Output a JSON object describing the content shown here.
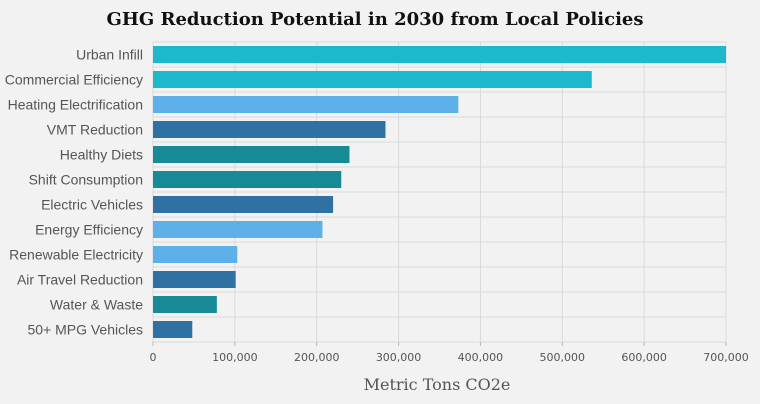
{
  "chart_data": {
    "type": "bar",
    "orientation": "horizontal",
    "title": "GHG Reduction Potential in 2030 from Local Policies",
    "xlabel": "Metric Tons CO2e",
    "ylabel": "",
    "xlim": [
      0,
      700000
    ],
    "xticks": [
      0,
      100000,
      200000,
      300000,
      400000,
      500000,
      600000,
      700000
    ],
    "xtick_labels": [
      "0",
      "100,000",
      "200,000",
      "300,000",
      "400,000",
      "500,000",
      "600,000",
      "700,000"
    ],
    "grid": true,
    "categories": [
      "Urban Infill",
      "Commercial Efficiency",
      "Heating Electrification",
      "VMT Reduction",
      "Healthy Diets",
      "Shift Consumption",
      "Electric Vehicles",
      "Energy Efficiency",
      "Renewable Electricity",
      "Air Travel Reduction",
      "Water & Waste",
      "50+ MPG Vehicles"
    ],
    "values": [
      700000,
      536000,
      373000,
      284000,
      240000,
      230000,
      220000,
      207000,
      103000,
      101000,
      78000,
      48000
    ],
    "colors": [
      "#1cb8cc",
      "#1cb8cc",
      "#5eb0e8",
      "#2e71a2",
      "#178a96",
      "#178a96",
      "#2e71a2",
      "#5eb0e8",
      "#5eb0e8",
      "#2e71a2",
      "#178a96",
      "#2e71a2"
    ]
  }
}
